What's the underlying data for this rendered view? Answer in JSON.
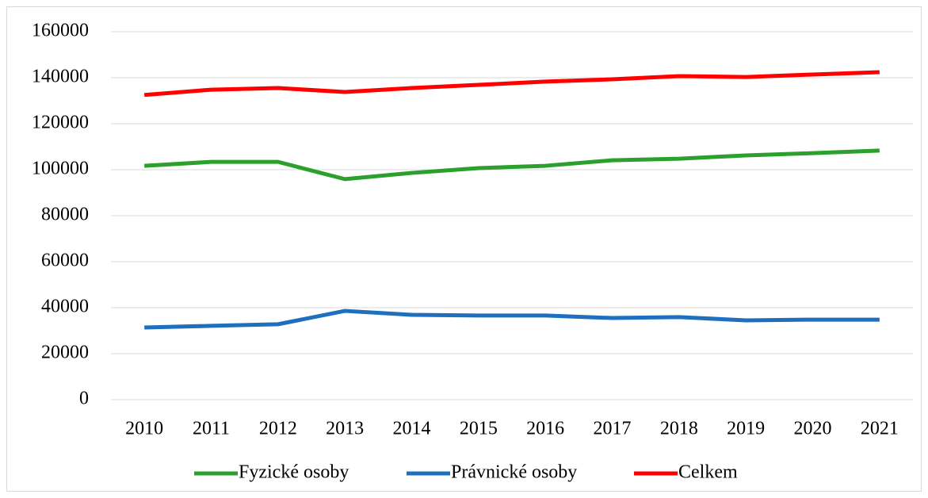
{
  "chart_data": {
    "type": "line",
    "x": [
      "2010",
      "2011",
      "2012",
      "2013",
      "2014",
      "2015",
      "2016",
      "2017",
      "2018",
      "2019",
      "2020",
      "2021"
    ],
    "series": [
      {
        "name": "Fyzické osoby",
        "color": "#2ca02c",
        "values": [
          101700,
          103400,
          103400,
          95900,
          98600,
          100700,
          101700,
          104100,
          104800,
          106200,
          107200,
          108300
        ]
      },
      {
        "name": "Právnické osoby",
        "color": "#1f6fbf",
        "values": [
          31400,
          32100,
          32800,
          38600,
          36900,
          36600,
          36600,
          35500,
          35900,
          34500,
          34800,
          34800
        ]
      },
      {
        "name": "Celkem",
        "color": "#ff0000",
        "values": [
          132500,
          134800,
          135500,
          133800,
          135500,
          136900,
          138300,
          139300,
          140700,
          140300,
          141400,
          142400
        ]
      }
    ],
    "ylim": [
      0,
      160000
    ],
    "yticks": [
      0,
      20000,
      40000,
      60000,
      80000,
      100000,
      120000,
      140000,
      160000
    ],
    "grid": true,
    "legend": "bottom"
  }
}
